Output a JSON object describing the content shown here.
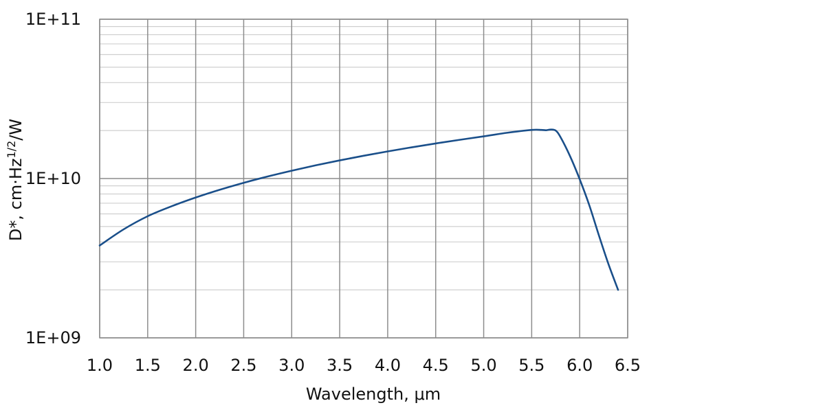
{
  "chart_data": {
    "type": "line",
    "xlabel": "Wavelength, μm",
    "ylabel_main": "D*, cm·Hz",
    "ylabel_sup": "1/2",
    "ylabel_tail": "/W",
    "xlim": [
      1.0,
      6.5
    ],
    "ylim": [
      1000000000,
      100000000000
    ],
    "yscale": "log",
    "grid": true,
    "x_ticks": [
      "1.0",
      "1.5",
      "2.0",
      "2.5",
      "3.0",
      "3.5",
      "4.0",
      "4.5",
      "5.0",
      "5.5",
      "6.0",
      "6.5"
    ],
    "y_ticks": [
      "1E+09",
      "1E+10",
      "1E+11"
    ],
    "line_color": "#1a4f8a",
    "series": [
      {
        "x": [
          1.0,
          1.25,
          1.5,
          1.75,
          2.0,
          2.25,
          2.5,
          2.75,
          3.0,
          3.25,
          3.5,
          3.75,
          4.0,
          4.25,
          4.5,
          4.75,
          5.0,
          5.25,
          5.5,
          5.6,
          5.65,
          5.7,
          5.75,
          5.8,
          5.9,
          6.0,
          6.1,
          6.2,
          6.3,
          6.4
        ],
        "y": [
          3800000000.0,
          4800000000.0,
          5800000000.0,
          6700000000.0,
          7600000000.0,
          8500000000.0,
          9400000000.0,
          10300000000.0,
          11200000000.0,
          12100000000.0,
          13000000000.0,
          13900000000.0,
          14800000000.0,
          15700000000.0,
          16600000000.0,
          17500000000.0,
          18400000000.0,
          19400000000.0,
          20200000000.0,
          20200000000.0,
          20100000000.0,
          20300000000.0,
          20000000000.0,
          18200000000.0,
          13800000000.0,
          9900000000.0,
          6800000000.0,
          4400000000.0,
          2900000000.0,
          2000000000.0
        ]
      }
    ]
  }
}
